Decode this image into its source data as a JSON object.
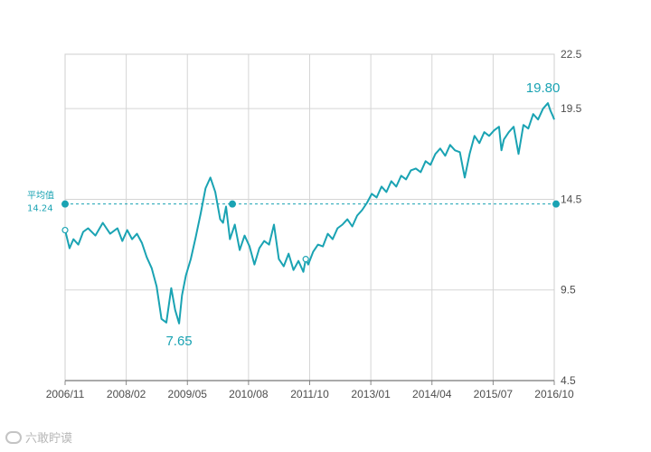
{
  "chart_data": {
    "type": "line",
    "title": "",
    "xlabel": "",
    "ylabel": "",
    "x_tick_labels": [
      "2006/11",
      "2008/02",
      "2009/05",
      "2010/08",
      "2011/10",
      "2013/01",
      "2014/04",
      "2015/07",
      "2016/10"
    ],
    "y_tick_labels": [
      "22.5",
      "19.5",
      "14.5",
      "9.5",
      "4.5"
    ],
    "y_ticks": [
      22.5,
      19.5,
      14.5,
      9.5,
      4.5
    ],
    "ylim": [
      4.5,
      22.5
    ],
    "y_axis_side": "right",
    "grid": true,
    "colors": {
      "line": "#1aa3b3",
      "grid": "#d5d5d5",
      "text": "#4d4d4d"
    },
    "series": [
      {
        "x": [
          2006.83,
          2006.92,
          2007.0,
          2007.1,
          2007.2,
          2007.3,
          2007.45,
          2007.6,
          2007.75,
          2007.9,
          2008.0,
          2008.1,
          2008.2,
          2008.3,
          2008.4,
          2008.5,
          2008.6,
          2008.7,
          2008.8,
          2008.9,
          2009.0,
          2009.08,
          2009.16,
          2009.22,
          2009.3,
          2009.4,
          2009.5,
          2009.6,
          2009.7,
          2009.8,
          2009.9,
          2010.0,
          2010.06,
          2010.12,
          2010.2,
          2010.3,
          2010.4,
          2010.5,
          2010.6,
          2010.7,
          2010.8,
          2010.9,
          2011.0,
          2011.1,
          2011.2,
          2011.3,
          2011.4,
          2011.5,
          2011.6,
          2011.7,
          2011.75,
          2011.8,
          2011.9,
          2012.0,
          2012.1,
          2012.2,
          2012.3,
          2012.4,
          2012.5,
          2012.6,
          2012.7,
          2012.8,
          2012.9,
          2013.0,
          2013.1,
          2013.2,
          2013.3,
          2013.4,
          2013.5,
          2013.6,
          2013.7,
          2013.8,
          2013.9,
          2014.0,
          2014.1,
          2014.2,
          2014.3,
          2014.4,
          2014.5,
          2014.6,
          2014.7,
          2014.8,
          2014.9,
          2015.0,
          2015.1,
          2015.2,
          2015.3,
          2015.4,
          2015.5,
          2015.6,
          2015.7,
          2015.75,
          2015.8,
          2015.9,
          2016.0,
          2016.1,
          2016.2,
          2016.3,
          2016.4,
          2016.5,
          2016.6,
          2016.7,
          2016.75,
          2016.8,
          2016.83
        ],
        "values": [
          12.8,
          11.8,
          12.3,
          12.0,
          12.7,
          12.9,
          12.5,
          13.2,
          12.6,
          12.9,
          12.2,
          12.8,
          12.3,
          12.6,
          12.1,
          11.3,
          10.7,
          9.7,
          7.9,
          7.7,
          9.6,
          8.4,
          7.65,
          9.2,
          10.3,
          11.2,
          12.4,
          13.7,
          15.1,
          15.7,
          14.9,
          13.4,
          13.2,
          14.1,
          12.3,
          13.1,
          11.7,
          12.5,
          11.9,
          10.9,
          11.8,
          12.2,
          12.0,
          13.1,
          11.2,
          10.8,
          11.5,
          10.6,
          11.1,
          10.5,
          11.2,
          10.9,
          11.6,
          12.0,
          11.9,
          12.6,
          12.3,
          12.9,
          13.1,
          13.4,
          13.0,
          13.6,
          13.9,
          14.3,
          14.8,
          14.6,
          15.2,
          14.9,
          15.5,
          15.2,
          15.8,
          15.6,
          16.1,
          16.2,
          16.0,
          16.6,
          16.4,
          17.0,
          17.3,
          16.9,
          17.5,
          17.2,
          17.1,
          15.7,
          17.0,
          18.0,
          17.6,
          18.2,
          18.0,
          18.3,
          18.5,
          17.2,
          17.8,
          18.2,
          18.5,
          17.0,
          18.6,
          18.4,
          19.2,
          18.9,
          19.5,
          19.8,
          19.4,
          19.1,
          18.9
        ]
      }
    ],
    "average": {
      "label": "平均值",
      "value_text": "14.24",
      "value": 14.24
    },
    "annotations": [
      {
        "text": "19.80",
        "x": 2016.6,
        "y": 19.8
      },
      {
        "text": "7.65",
        "x": 2009.16,
        "y": 7.65
      }
    ]
  },
  "watermark": {
    "text": "六敢眝谟"
  }
}
